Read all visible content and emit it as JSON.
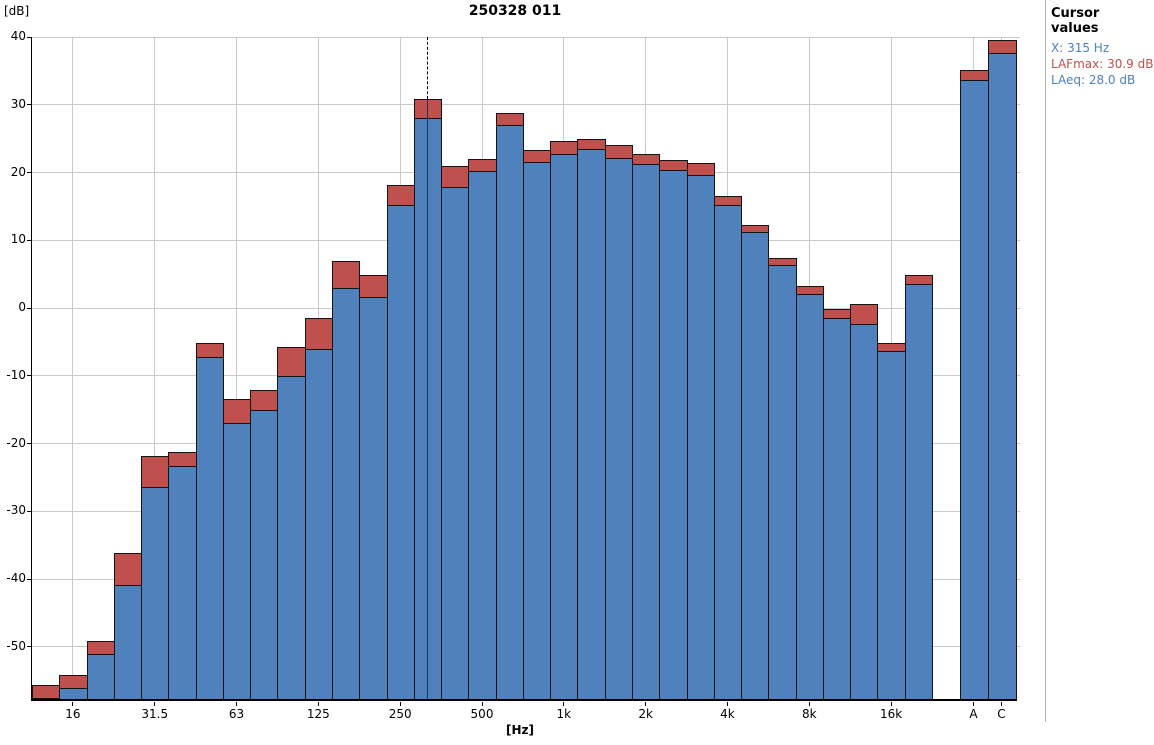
{
  "title": "250328 011",
  "y_axis": {
    "unit_label": "[dB]",
    "ticks": [
      40,
      30,
      20,
      10,
      0,
      -10,
      -20,
      -30,
      -40,
      -50
    ]
  },
  "x_axis": {
    "unit_label": "[Hz]"
  },
  "cursor_panel": {
    "heading": "Cursor values",
    "x_line": "X: 315 Hz",
    "lafmax_line": "LAFmax: 30.9 dB",
    "laeq_line": "LAeq: 28.0 dB"
  },
  "colors": {
    "laeq_bar": "#4f81bd",
    "lafmax_bar": "#c0504d",
    "bar_border": "#141414",
    "grid": "#c9c9c9",
    "cursor_text_blue": "#4f81bd",
    "cursor_text_red": "#c0504d"
  },
  "chart_data": {
    "type": "bar",
    "title": "250328 011",
    "xlabel": "[Hz]",
    "ylabel": "[dB]",
    "ylim": [
      -58,
      40
    ],
    "grid": true,
    "categories": [
      "12.5",
      "16",
      "20",
      "25",
      "31.5",
      "40",
      "50",
      "63",
      "80",
      "100",
      "125",
      "160",
      "200",
      "250",
      "315",
      "400",
      "500",
      "630",
      "800",
      "1k",
      "1.25k",
      "1.6k",
      "2k",
      "2.5k",
      "3.15k",
      "4k",
      "5k",
      "6.3k",
      "8k",
      "10k",
      "12.5k",
      "16k",
      "20k",
      "A",
      "C"
    ],
    "series": [
      {
        "name": "LAeq",
        "color": "#4f81bd",
        "values": [
          -57.5,
          -56.1,
          -51.0,
          -40.9,
          -26.4,
          -23.3,
          -7.3,
          -17.0,
          -15.1,
          -10.1,
          -6.0,
          3.0,
          1.6,
          15.2,
          28.0,
          17.8,
          20.2,
          27.0,
          21.6,
          22.8,
          23.4,
          22.2,
          21.2,
          20.4,
          19.6,
          15.2,
          11.2,
          6.4,
          2.1,
          -1.5,
          -2.4,
          -6.3,
          3.6,
          33.7,
          37.7
        ]
      },
      {
        "name": "LAFmax",
        "color": "#c0504d",
        "values": [
          -55.7,
          -54.1,
          -49.1,
          -36.2,
          -21.8,
          -21.3,
          -5.1,
          -13.5,
          -12.1,
          -5.7,
          -1.5,
          6.9,
          4.8,
          18.2,
          30.9,
          21.0,
          22.0,
          28.8,
          23.3,
          24.6,
          25.0,
          24.1,
          22.7,
          21.9,
          21.4,
          16.5,
          12.3,
          7.4,
          3.2,
          -0.2,
          0.6,
          -5.2,
          4.8,
          35.2,
          39.6
        ]
      }
    ],
    "labeled_ticks": [
      {
        "index": 1,
        "label": "16"
      },
      {
        "index": 4,
        "label": "31.5"
      },
      {
        "index": 7,
        "label": "63"
      },
      {
        "index": 10,
        "label": "125"
      },
      {
        "index": 13,
        "label": "250"
      },
      {
        "index": 16,
        "label": "500"
      },
      {
        "index": 19,
        "label": "1k"
      },
      {
        "index": 22,
        "label": "2k"
      },
      {
        "index": 25,
        "label": "4k"
      },
      {
        "index": 28,
        "label": "8k"
      },
      {
        "index": 31,
        "label": "16k"
      },
      {
        "index": 33,
        "label": "A"
      },
      {
        "index": 34,
        "label": "C"
      }
    ],
    "cursor": {
      "index": 14,
      "x": "315 Hz",
      "LAFmax_dB": 30.9,
      "LAeq_dB": 28.0
    }
  }
}
